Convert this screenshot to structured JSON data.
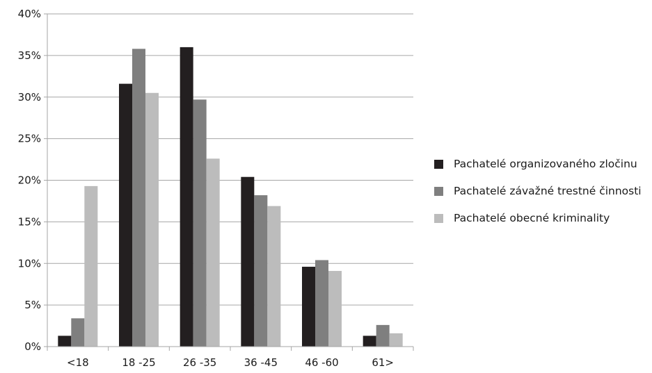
{
  "chart_data": {
    "type": "bar",
    "categories": [
      "<18",
      "18 -25",
      "26 -35",
      "36 -45",
      "46 -60",
      "61>"
    ],
    "series": [
      {
        "name": "Pachatelé organizovaného zločinu",
        "color": "#231f20",
        "values": [
          1.3,
          31.6,
          36.0,
          20.4,
          9.6,
          1.3
        ]
      },
      {
        "name": "Pachatelé závažné trestné činnosti",
        "color": "#7f7f7f",
        "values": [
          3.4,
          35.8,
          29.7,
          18.2,
          10.4,
          2.6
        ]
      },
      {
        "name": "Pachatelé obecné kriminality",
        "color": "#bcbcbc",
        "values": [
          19.3,
          30.5,
          22.6,
          16.9,
          9.1,
          1.6
        ]
      }
    ],
    "ylim": [
      0,
      40
    ],
    "yticks": [
      0,
      5,
      10,
      15,
      20,
      25,
      30,
      35,
      40
    ],
    "ytick_labels": [
      "0%",
      "5%",
      "10%",
      "15%",
      "20%",
      "25%",
      "30%",
      "35%",
      "40%"
    ],
    "grid": true,
    "legend": "right",
    "title": "",
    "xlabel": "",
    "ylabel": ""
  }
}
